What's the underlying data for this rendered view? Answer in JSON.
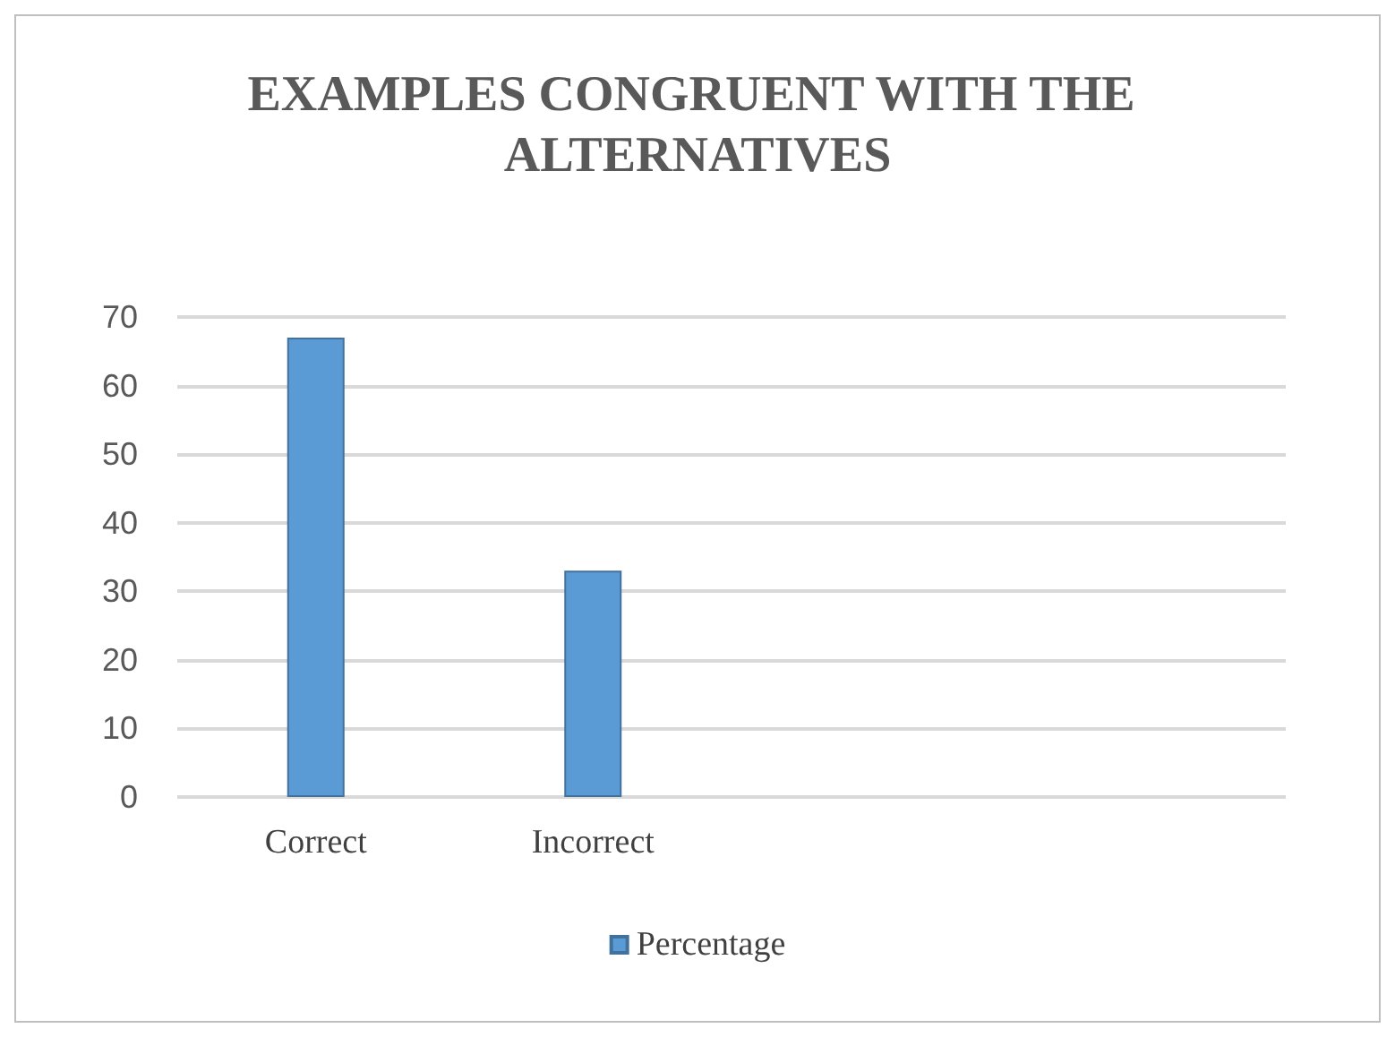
{
  "chart_data": {
    "type": "bar",
    "title": "EXAMPLES CONGRUENT WITH THE ALTERNATIVES",
    "categories": [
      "Correct",
      "Incorrect",
      null,
      null
    ],
    "series": [
      {
        "name": "Percentage",
        "color": "#5b9bd5",
        "values": [
          67,
          33,
          null,
          null
        ]
      }
    ],
    "ylim": [
      0,
      70
    ],
    "yticks": [
      0,
      10,
      20,
      30,
      40,
      50,
      60,
      70
    ],
    "grid": "y",
    "legend": "bottom"
  }
}
